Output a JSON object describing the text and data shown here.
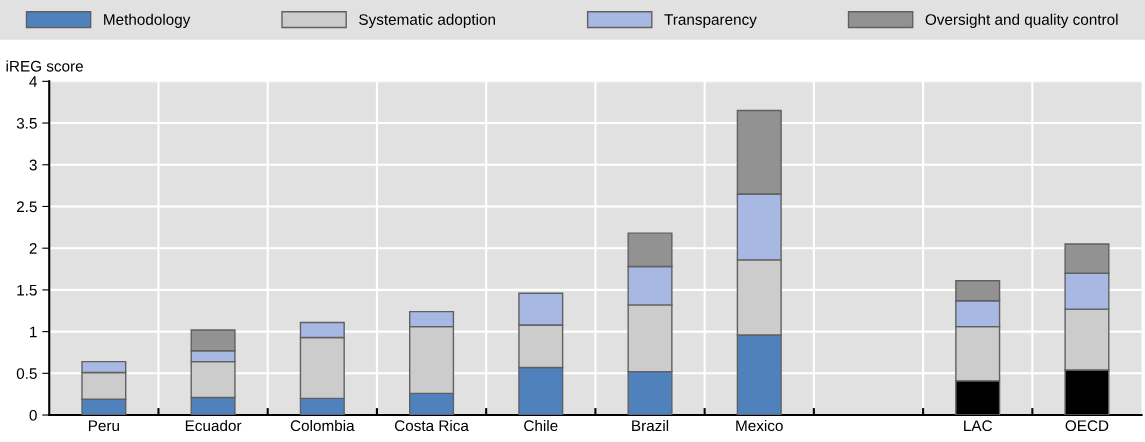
{
  "chart_data": {
    "type": "bar",
    "stacked": true,
    "ylabel": "iREG score",
    "categories": [
      "Peru",
      "Ecuador",
      "Colombia",
      "Costa Rica",
      "Chile",
      "Brazil",
      "Mexico",
      null,
      "LAC",
      "OECD"
    ],
    "series": [
      {
        "name": "Methodology",
        "color": "#4f81bd",
        "colors": [
          "#4f81bd",
          "#4f81bd",
          "#4f81bd",
          "#4f81bd",
          "#4f81bd",
          "#4f81bd",
          "#4f81bd",
          "#4f81bd",
          "#000000",
          "#000000"
        ],
        "values": [
          0.19,
          0.21,
          0.2,
          0.26,
          0.57,
          0.52,
          0.96,
          null,
          0.41,
          0.54
        ]
      },
      {
        "name": "Systematic adoption",
        "color": "#cccccc",
        "values": [
          0.32,
          0.43,
          0.73,
          0.8,
          0.51,
          0.8,
          0.9,
          null,
          0.65,
          0.73
        ]
      },
      {
        "name": "Transparency",
        "color": "#a7b8e2",
        "values": [
          0.13,
          0.13,
          0.18,
          0.18,
          0.38,
          0.46,
          0.79,
          null,
          0.31,
          0.43
        ]
      },
      {
        "name": "Oversight and quality control",
        "color": "#929292",
        "values": [
          0,
          0.25,
          0,
          0,
          0,
          0.4,
          1.0,
          null,
          0.24,
          0.35
        ]
      }
    ],
    "ylim": [
      0,
      4
    ],
    "yticks": [
      0,
      0.5,
      1,
      1.5,
      2,
      2.5,
      3,
      3.5,
      4
    ],
    "grid": true,
    "legend": "top"
  }
}
